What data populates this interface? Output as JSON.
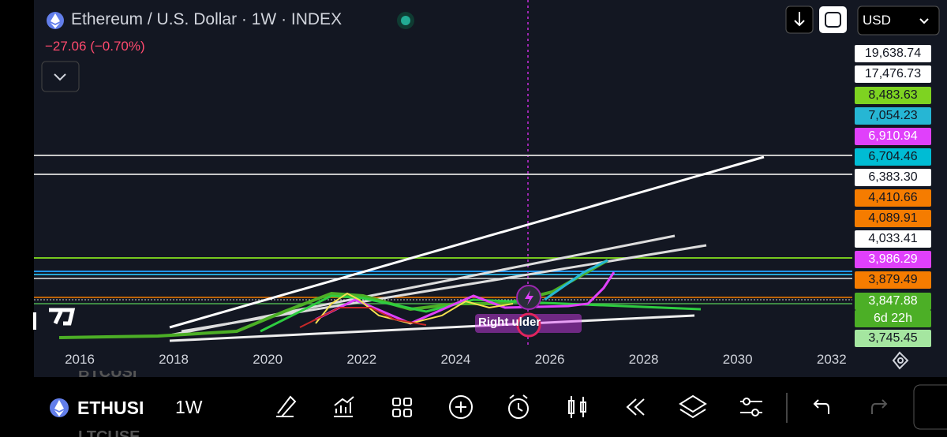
{
  "header": {
    "title": "Ethereum / U.S. Dollar · 1W · INDEX",
    "change": "−27.06 (−0.70%)",
    "currency": "USD"
  },
  "price_labels": [
    {
      "text": "19,638.74",
      "bg": "#ffffff",
      "fg": "#131722"
    },
    {
      "text": "17,476.73",
      "bg": "#ffffff",
      "fg": "#131722"
    },
    {
      "text": "8,483.63",
      "bg": "#7ed321",
      "fg": "#131722"
    },
    {
      "text": "7,054.23",
      "bg": "#26b6d4",
      "fg": "#131722"
    },
    {
      "text": "6,910.94",
      "bg": "#e040fb",
      "fg": "#ffffff"
    },
    {
      "text": "6,704.46",
      "bg": "#00bcd4",
      "fg": "#131722"
    },
    {
      "text": "6,383.30",
      "bg": "#ffffff",
      "fg": "#131722"
    },
    {
      "text": "4,410.66",
      "bg": "#f57c00",
      "fg": "#131722"
    },
    {
      "text": "4,089.91",
      "bg": "#f57c00",
      "fg": "#131722"
    },
    {
      "text": "4,033.41",
      "bg": "#ffffff",
      "fg": "#131722"
    },
    {
      "text": "3,986.29",
      "bg": "#e040fb",
      "fg": "#ffffff"
    },
    {
      "text": "3,879.49",
      "bg": "#f57c00",
      "fg": "#131722"
    },
    {
      "text": "3,847.88",
      "bg": "#4caf26",
      "fg": "#ffffff"
    },
    {
      "text": "6d 22h",
      "bg": "#4caf26",
      "fg": "#ffffff"
    },
    {
      "text": "3,745.45",
      "bg": "#a5e6a0",
      "fg": "#131722"
    }
  ],
  "x_axis": [
    "2016",
    "2018",
    "2020",
    "2022",
    "2024",
    "2026",
    "2028",
    "2030",
    "2032"
  ],
  "overlay_label": "Right  ulder",
  "toolbar": {
    "symbol": "ETHUSI",
    "interval": "1W",
    "watch_above": "BTCUSI",
    "watch_below": "LTCUSE"
  }
}
